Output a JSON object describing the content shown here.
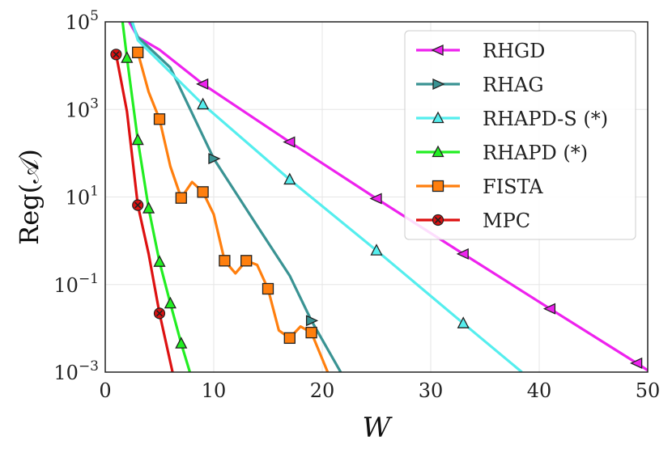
{
  "chart_data": {
    "type": "line",
    "title": "",
    "xlabel": "W",
    "ylabel": "Reg(𝒜)",
    "yscale": "log",
    "xlim": [
      0,
      50
    ],
    "ylim": [
      0.001,
      100000
    ],
    "xticks": [
      {
        "value": 0,
        "label": "0"
      },
      {
        "value": 10,
        "label": "10"
      },
      {
        "value": 20,
        "label": "20"
      },
      {
        "value": 30,
        "label": "30"
      },
      {
        "value": 40,
        "label": "40"
      },
      {
        "value": 50,
        "label": "50"
      }
    ],
    "yticks": [
      {
        "value": 0.001,
        "base": "10",
        "exp": "−3"
      },
      {
        "value": 0.1,
        "base": "10",
        "exp": "−1"
      },
      {
        "value": 10,
        "base": "10",
        "exp": "1"
      },
      {
        "value": 1000,
        "base": "10",
        "exp": "3"
      },
      {
        "value": 100000,
        "base": "10",
        "exp": "5"
      }
    ],
    "grid": true,
    "legend_position": "top-right",
    "series": [
      {
        "name": "RHGD",
        "color": "#ee22ee",
        "marker": "triangle-left",
        "line_x": [
          2.2,
          3,
          5,
          9,
          17,
          25,
          33,
          41,
          49,
          50
        ],
        "line_y": [
          100000,
          45000,
          23000,
          3800,
          180,
          9.2,
          0.5,
          0.028,
          0.0016,
          0.0011
        ],
        "marker_x": [
          9,
          17,
          25,
          33,
          41,
          49
        ],
        "marker_y": [
          3800,
          180,
          9.2,
          0.5,
          0.028,
          0.0016
        ]
      },
      {
        "name": "RHAG",
        "color": "#3a9393",
        "marker": "triangle-right",
        "line_x": [
          2.4,
          3,
          6,
          10,
          14,
          17,
          19,
          21.7
        ],
        "line_y": [
          100000,
          45000,
          9000,
          75,
          2.2,
          0.16,
          0.015,
          0.001
        ],
        "marker_x": [
          10,
          19
        ],
        "marker_y": [
          75,
          0.015
        ]
      },
      {
        "name": "RHAPD-S (*)",
        "color": "#55eeee",
        "marker": "triangle-up",
        "line_x": [
          2.5,
          3,
          9,
          17,
          25,
          33,
          38.4
        ],
        "line_y": [
          100000,
          38000,
          1300,
          25,
          0.6,
          0.013,
          0.001
        ],
        "marker_x": [
          9,
          17,
          25,
          33
        ],
        "marker_y": [
          1300,
          25,
          0.6,
          0.013
        ]
      },
      {
        "name": "RHAPD (*)",
        "color": "#22ee22",
        "marker": "triangle-up",
        "line_x": [
          1.6,
          2,
          3,
          4,
          5,
          6,
          7,
          7.8
        ],
        "line_y": [
          100000,
          15000,
          200,
          5.5,
          0.33,
          0.037,
          0.0045,
          0.001
        ],
        "marker_x": [
          2,
          3,
          4,
          5,
          6,
          7
        ],
        "marker_y": [
          15000,
          200,
          5.5,
          0.33,
          0.037,
          0.0045
        ]
      },
      {
        "name": "FISTA",
        "color": "#ff7f0e",
        "marker": "square",
        "line_x": [
          3,
          4,
          5,
          6,
          7,
          8,
          9,
          10,
          11,
          12,
          13,
          14,
          15,
          16,
          17,
          18,
          19,
          20,
          20.5
        ],
        "line_y": [
          20000,
          2500,
          600,
          50,
          9.5,
          22,
          13,
          4,
          0.35,
          0.18,
          0.35,
          0.28,
          0.08,
          0.009,
          0.006,
          0.011,
          0.008,
          0.002,
          0.001
        ],
        "marker_x": [
          3,
          5,
          7,
          9,
          11,
          13,
          15,
          17,
          19
        ],
        "marker_y": [
          20000,
          600,
          9.5,
          13,
          0.35,
          0.35,
          0.08,
          0.006,
          0.008
        ]
      },
      {
        "name": "MPC",
        "color": "#dd1111",
        "marker": "x-circle",
        "line_x": [
          1,
          2,
          3,
          4,
          5,
          6.2
        ],
        "line_y": [
          18000,
          900,
          6.5,
          0.5,
          0.022,
          0.001
        ],
        "marker_x": [
          1,
          3,
          5
        ],
        "marker_y": [
          18000,
          6.5,
          0.022
        ]
      }
    ]
  }
}
